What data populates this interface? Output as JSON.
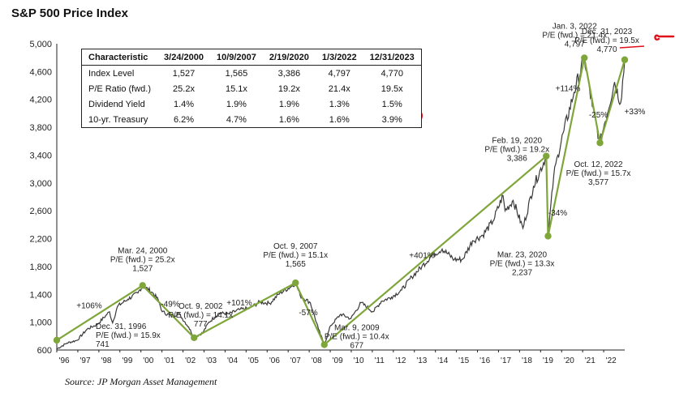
{
  "title": "S&P 500 Price Index",
  "source": "Source: JP Morgan Asset Management",
  "colors": {
    "price_line": "#3a3a3a",
    "trend_line": "#7fa63a",
    "markup": "#e0101a"
  },
  "table": {
    "headers": [
      "Characteristic",
      "3/24/2000",
      "10/9/2007",
      "2/19/2020",
      "1/3/2022",
      "12/31/2023"
    ],
    "rows": [
      [
        "Index Level",
        "1,527",
        "1,565",
        "3,386",
        "4,797",
        "4,770"
      ],
      [
        "P/E Ratio (fwd.)",
        "25.2x",
        "15.1x",
        "19.2x",
        "21.4x",
        "19.5x"
      ],
      [
        "Dividend Yield",
        "1.4%",
        "1.9%",
        "1.9%",
        "1.3%",
        "1.5%"
      ],
      [
        "10-yr. Treasury",
        "6.2%",
        "4.7%",
        "1.6%",
        "1.6%",
        "3.9%"
      ]
    ]
  },
  "chart_data": {
    "type": "line",
    "title": "S&P 500 Price Index",
    "ylim": [
      600,
      5000
    ],
    "y_ticks": [
      "600",
      "1,000",
      "1,400",
      "1,800",
      "2,200",
      "2,600",
      "3,000",
      "3,400",
      "3,800",
      "4,200",
      "4,600",
      "5,000"
    ],
    "x_ticks": [
      "'96",
      "'97",
      "'98",
      "'99",
      "'00",
      "'01",
      "'02",
      "'03",
      "'04",
      "'05",
      "'06",
      "'07",
      "'08",
      "'09",
      "'10",
      "'11",
      "'12",
      "'13",
      "'14",
      "'15",
      "'16",
      "'17",
      "'18",
      "'19",
      "'20",
      "'21",
      "'22"
    ],
    "series": [
      {
        "x": [
          1996.0,
          1996.5,
          1997.0,
          1997.5,
          1998.0,
          1998.6,
          1998.75,
          1999.0,
          1999.5,
          2000.0,
          2000.23,
          2000.7,
          2001.0,
          2001.2,
          2001.7,
          2002.0,
          2002.5,
          2002.77,
          2003.2,
          2003.5,
          2004.0,
          2004.5,
          2005.0,
          2005.5,
          2006.0,
          2006.5,
          2007.0,
          2007.5,
          2007.77,
          2008.0,
          2008.5,
          2008.9,
          2009.19,
          2009.5,
          2010.0,
          2010.5,
          2011.0,
          2011.6,
          2012.0,
          2012.5,
          2013.0,
          2013.5,
          2014.0,
          2014.5,
          2015.0,
          2015.6,
          2016.0,
          2016.5,
          2017.0,
          2017.5,
          2018.0,
          2018.1,
          2018.5,
          2018.98,
          2019.5,
          2020.13,
          2020.22,
          2020.5,
          2020.7,
          2021.0,
          2021.5,
          2022.01,
          2022.4,
          2022.78,
          2023.0,
          2023.5,
          2023.8,
          2024.0
        ],
        "values": [
          615,
          700,
          740,
          900,
          970,
          1150,
          990,
          1230,
          1330,
          1420,
          1527,
          1430,
          1320,
          1150,
          1080,
          1130,
          930,
          777,
          850,
          1000,
          1130,
          1120,
          1180,
          1200,
          1290,
          1270,
          1420,
          1500,
          1565,
          1380,
          1280,
          900,
          677,
          950,
          1115,
          1050,
          1280,
          1150,
          1300,
          1360,
          1460,
          1650,
          1800,
          1960,
          2050,
          1900,
          1900,
          2170,
          2250,
          2450,
          2820,
          2600,
          2750,
          2350,
          2950,
          3386,
          2237,
          3100,
          3400,
          3750,
          4300,
          4797,
          4100,
          3577,
          3850,
          4450,
          4150,
          4770
        ]
      }
    ],
    "trend_points": [
      {
        "x": 1996.0,
        "y": 741
      },
      {
        "x": 2000.23,
        "y": 1527
      },
      {
        "x": 2002.77,
        "y": 777
      },
      {
        "x": 2007.77,
        "y": 1565
      },
      {
        "x": 2009.19,
        "y": 677
      },
      {
        "x": 2020.13,
        "y": 3386
      },
      {
        "x": 2020.22,
        "y": 2237
      },
      {
        "x": 2022.01,
        "y": 4797
      },
      {
        "x": 2022.78,
        "y": 3577
      },
      {
        "x": 2024.0,
        "y": 4770
      }
    ],
    "annotations": [
      {
        "lines": [
          "Mar. 24, 2000",
          "P/E (fwd.) = 25.2x",
          "1,527"
        ],
        "x": 2000.23,
        "y": 1527
      },
      {
        "lines": [
          "Dec. 31, 1996",
          "P/E (fwd.) = 15.9x",
          "741"
        ],
        "x": 1996.0,
        "y": 741
      },
      {
        "lines": [
          "Oct. 9, 2002",
          "P/E (fwd.) = 14.1x",
          "777"
        ],
        "x": 2002.77,
        "y": 777
      },
      {
        "lines": [
          "Oct. 9, 2007",
          "P/E (fwd.) = 15.1x",
          "1,565"
        ],
        "x": 2007.77,
        "y": 1565
      },
      {
        "lines": [
          "Mar. 9, 2009",
          "P/E (fwd.) = 10.4x",
          "677"
        ],
        "x": 2009.19,
        "y": 677
      },
      {
        "lines": [
          "Feb. 19, 2020",
          "P/E (fwd.) = 19.2x",
          "3,386"
        ],
        "x": 2020.13,
        "y": 3386
      },
      {
        "lines": [
          "Mar. 23, 2020",
          "P/E (fwd.) = 13.3x",
          "2,237"
        ],
        "x": 2020.22,
        "y": 2237
      },
      {
        "lines": [
          "Jan. 3, 2022",
          "P/E (fwd.) = 21.4x",
          "4,797"
        ],
        "x": 2022.01,
        "y": 4797
      },
      {
        "lines": [
          "Oct. 12, 2022",
          "P/E (fwd.) = 15.7x",
          "3,577"
        ],
        "x": 2022.78,
        "y": 3577
      },
      {
        "lines": [
          "Dec. 31, 2023",
          "P/E (fwd.) = 19.5x",
          "4,770"
        ],
        "x": 2024.0,
        "y": 4770
      }
    ],
    "pct_changes": [
      {
        "text": "+106%",
        "x": 1997.6,
        "y": 1200
      },
      {
        "text": "-49%",
        "x": 2001.6,
        "y": 1220
      },
      {
        "text": "+101%",
        "x": 2005.0,
        "y": 1240
      },
      {
        "text": "-57%",
        "x": 2008.4,
        "y": 1100
      },
      {
        "text": "+401%",
        "x": 2014.0,
        "y": 1920
      },
      {
        "text": "-34%",
        "x": 2020.7,
        "y": 2530
      },
      {
        "text": "+114%",
        "x": 2021.2,
        "y": 4320
      },
      {
        "text": "-25%",
        "x": 2022.7,
        "y": 3940
      },
      {
        "text": "+33%",
        "x": 2024.5,
        "y": 3990
      }
    ],
    "grid": false,
    "legend": "none"
  }
}
